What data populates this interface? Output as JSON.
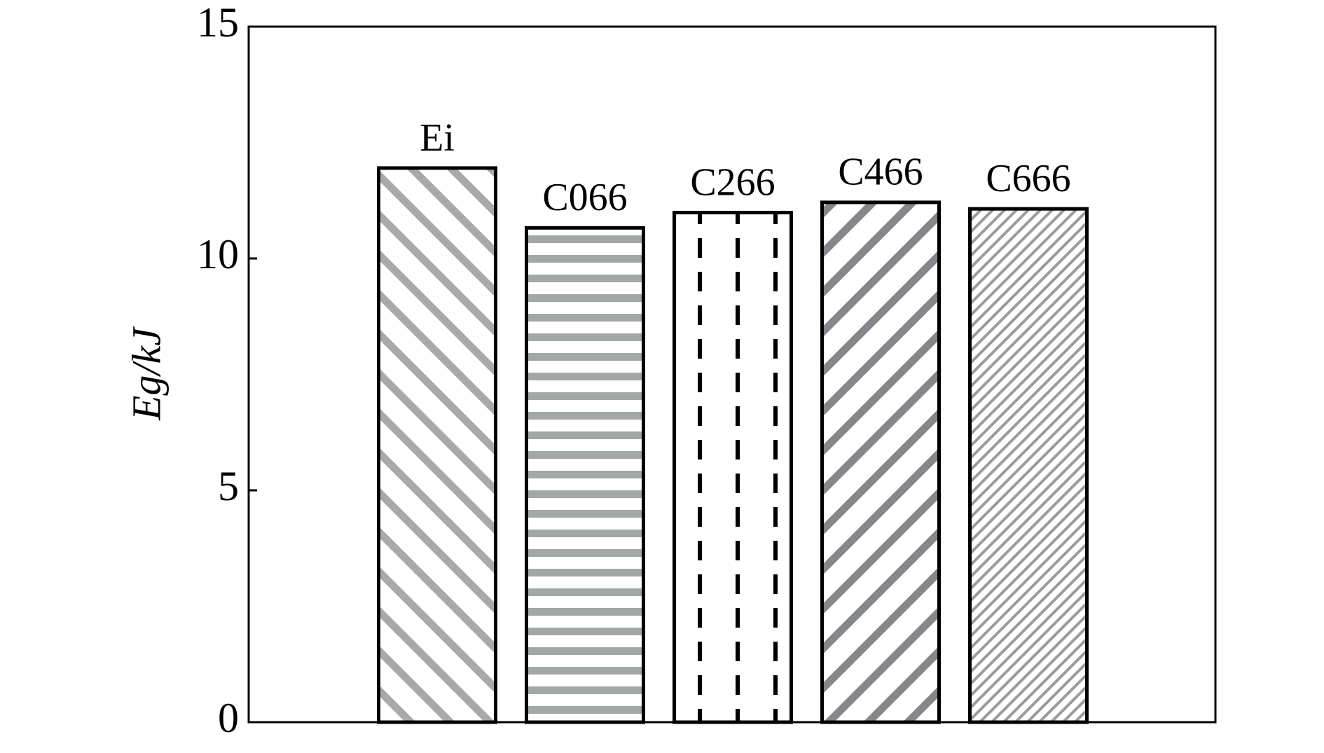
{
  "chart_data": {
    "type": "bar",
    "y_label": "Eg/kJ",
    "categories": [
      "Ei",
      "C066",
      "C266",
      "C466",
      "C666"
    ],
    "values": [
      11.95,
      10.66,
      10.99,
      11.21,
      11.07
    ],
    "colors": [
      "#a9aaa8",
      "#a3a8a6",
      "#000000",
      "#85878b",
      "#9a9b9d"
    ],
    "hatches": [
      "\\",
      "-",
      "|",
      "/",
      "x"
    ],
    "ylim": [
      0,
      15
    ],
    "yticks": [
      0,
      5,
      10,
      15
    ]
  }
}
